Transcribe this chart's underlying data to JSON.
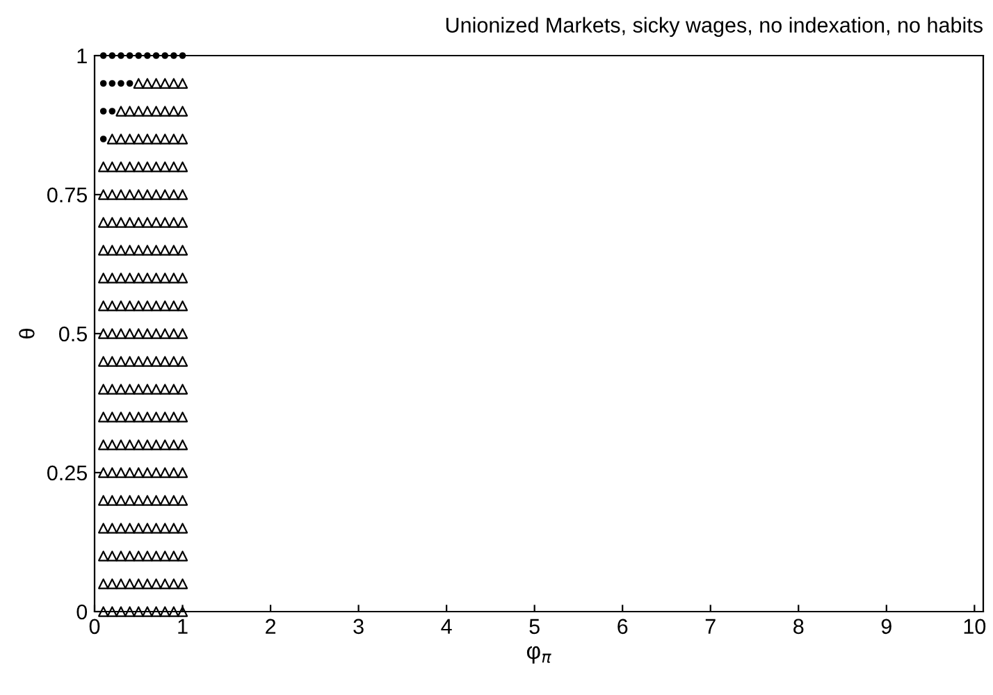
{
  "chart_data": {
    "type": "scatter",
    "title": "Unionized Markets, sicky wages, no indexation, no habits",
    "xlabel": "φ$_{π}$",
    "ylabel": "θ",
    "xlim": [
      0,
      10.1
    ],
    "xticks": [
      0,
      1,
      2,
      3,
      4,
      5,
      6,
      7,
      8,
      9,
      10
    ],
    "ylim": [
      0,
      1
    ],
    "yticks": [
      0,
      0.25,
      0.5,
      0.75,
      1
    ],
    "grid": false,
    "legend": false,
    "series": [
      {
        "marker": "triangle",
        "color": "#000000",
        "x": [
          0.1,
          0.1,
          0.1,
          0.1,
          0.1,
          0.1,
          0.1,
          0.1,
          0.1,
          0.1,
          0.1,
          0.1,
          0.1,
          0.1,
          0.1,
          0.1,
          0.1
        ],
        "values": [
          0,
          0.05,
          0.1,
          0.15,
          0.2,
          0.25,
          0.3,
          0.35,
          0.4,
          0.45,
          0.5,
          0.55,
          0.6,
          0.65,
          0.7,
          0.75,
          0.8
        ]
      },
      {
        "marker": "triangle",
        "color": "#000000",
        "x": [
          0.2,
          0.2,
          0.2,
          0.2,
          0.2,
          0.2,
          0.2,
          0.2,
          0.2,
          0.2,
          0.2,
          0.2,
          0.2,
          0.2,
          0.2,
          0.2,
          0.2,
          0.2
        ],
        "values": [
          0,
          0.05,
          0.1,
          0.15,
          0.2,
          0.25,
          0.3,
          0.35,
          0.4,
          0.45,
          0.5,
          0.55,
          0.6,
          0.65,
          0.7,
          0.75,
          0.8,
          0.85
        ]
      },
      {
        "marker": "triangle",
        "color": "#000000",
        "x": [
          0.3,
          0.3,
          0.3,
          0.3,
          0.3,
          0.3,
          0.3,
          0.3,
          0.3,
          0.3,
          0.3,
          0.3,
          0.3,
          0.3,
          0.3,
          0.3,
          0.3,
          0.3,
          0.3
        ],
        "values": [
          0,
          0.05,
          0.1,
          0.15,
          0.2,
          0.25,
          0.3,
          0.35,
          0.4,
          0.45,
          0.5,
          0.55,
          0.6,
          0.65,
          0.7,
          0.75,
          0.8,
          0.85,
          0.9
        ]
      },
      {
        "marker": "triangle",
        "color": "#000000",
        "x": [
          0.4,
          0.4,
          0.4,
          0.4,
          0.4,
          0.4,
          0.4,
          0.4,
          0.4,
          0.4,
          0.4,
          0.4,
          0.4,
          0.4,
          0.4,
          0.4,
          0.4,
          0.4,
          0.4
        ],
        "values": [
          0,
          0.05,
          0.1,
          0.15,
          0.2,
          0.25,
          0.3,
          0.35,
          0.4,
          0.45,
          0.5,
          0.55,
          0.6,
          0.65,
          0.7,
          0.75,
          0.8,
          0.85,
          0.9
        ]
      },
      {
        "marker": "triangle",
        "color": "#000000",
        "x": [
          0.5,
          0.5,
          0.5,
          0.5,
          0.5,
          0.5,
          0.5,
          0.5,
          0.5,
          0.5,
          0.5,
          0.5,
          0.5,
          0.5,
          0.5,
          0.5,
          0.5,
          0.5,
          0.5,
          0.5
        ],
        "values": [
          0,
          0.05,
          0.1,
          0.15,
          0.2,
          0.25,
          0.3,
          0.35,
          0.4,
          0.45,
          0.5,
          0.55,
          0.6,
          0.65,
          0.7,
          0.75,
          0.8,
          0.85,
          0.9,
          0.95
        ]
      },
      {
        "marker": "triangle",
        "color": "#000000",
        "x": [
          0.6,
          0.6,
          0.6,
          0.6,
          0.6,
          0.6,
          0.6,
          0.6,
          0.6,
          0.6,
          0.6,
          0.6,
          0.6,
          0.6,
          0.6,
          0.6,
          0.6,
          0.6,
          0.6,
          0.6
        ],
        "values": [
          0,
          0.05,
          0.1,
          0.15,
          0.2,
          0.25,
          0.3,
          0.35,
          0.4,
          0.45,
          0.5,
          0.55,
          0.6,
          0.65,
          0.7,
          0.75,
          0.8,
          0.85,
          0.9,
          0.95
        ]
      },
      {
        "marker": "triangle",
        "color": "#000000",
        "x": [
          0.7,
          0.7,
          0.7,
          0.7,
          0.7,
          0.7,
          0.7,
          0.7,
          0.7,
          0.7,
          0.7,
          0.7,
          0.7,
          0.7,
          0.7,
          0.7,
          0.7,
          0.7,
          0.7,
          0.7
        ],
        "values": [
          0,
          0.05,
          0.1,
          0.15,
          0.2,
          0.25,
          0.3,
          0.35,
          0.4,
          0.45,
          0.5,
          0.55,
          0.6,
          0.65,
          0.7,
          0.75,
          0.8,
          0.85,
          0.9,
          0.95
        ]
      },
      {
        "marker": "triangle",
        "color": "#000000",
        "x": [
          0.8,
          0.8,
          0.8,
          0.8,
          0.8,
          0.8,
          0.8,
          0.8,
          0.8,
          0.8,
          0.8,
          0.8,
          0.8,
          0.8,
          0.8,
          0.8,
          0.8,
          0.8,
          0.8,
          0.8
        ],
        "values": [
          0,
          0.05,
          0.1,
          0.15,
          0.2,
          0.25,
          0.3,
          0.35,
          0.4,
          0.45,
          0.5,
          0.55,
          0.6,
          0.65,
          0.7,
          0.75,
          0.8,
          0.85,
          0.9,
          0.95
        ]
      },
      {
        "marker": "triangle",
        "color": "#000000",
        "x": [
          0.9,
          0.9,
          0.9,
          0.9,
          0.9,
          0.9,
          0.9,
          0.9,
          0.9,
          0.9,
          0.9,
          0.9,
          0.9,
          0.9,
          0.9,
          0.9,
          0.9,
          0.9,
          0.9,
          0.9
        ],
        "values": [
          0,
          0.05,
          0.1,
          0.15,
          0.2,
          0.25,
          0.3,
          0.35,
          0.4,
          0.45,
          0.5,
          0.55,
          0.6,
          0.65,
          0.7,
          0.75,
          0.8,
          0.85,
          0.9,
          0.95
        ]
      },
      {
        "marker": "triangle",
        "color": "#000000",
        "x": [
          1,
          1,
          1,
          1,
          1,
          1,
          1,
          1,
          1,
          1,
          1,
          1,
          1,
          1,
          1,
          1,
          1,
          1,
          1,
          1
        ],
        "values": [
          0,
          0.05,
          0.1,
          0.15,
          0.2,
          0.25,
          0.3,
          0.35,
          0.4,
          0.45,
          0.5,
          0.55,
          0.6,
          0.65,
          0.7,
          0.75,
          0.8,
          0.85,
          0.9,
          0.95
        ]
      },
      {
        "marker": "circle",
        "color": "#000000",
        "x": [
          0.1,
          0.1,
          0.1,
          0.1,
          0.2,
          0.2,
          0.2,
          0.3,
          0.3,
          0.4,
          0.4,
          0.5,
          0.6,
          0.7,
          0.8,
          0.9,
          1
        ],
        "values": [
          0.85,
          0.9,
          0.95,
          1,
          0.9,
          0.95,
          1,
          0.95,
          1,
          0.95,
          1,
          1,
          1,
          1,
          1,
          1,
          1
        ]
      }
    ]
  }
}
